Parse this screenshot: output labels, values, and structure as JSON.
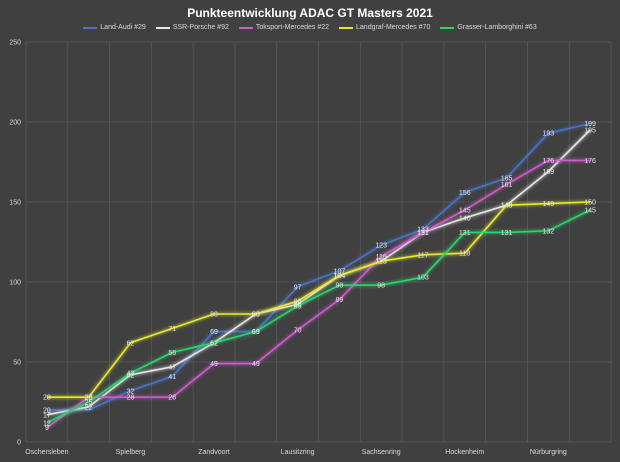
{
  "chart_data": {
    "type": "line",
    "title": "Punkteentwicklung ADAC GT Masters 2021",
    "xlabel": "",
    "ylabel": "",
    "ylim": [
      0,
      250
    ],
    "yticks": [
      0,
      50,
      100,
      150,
      200,
      250
    ],
    "grid": true,
    "legend_position": "top",
    "categories": [
      "Oschersleben",
      "",
      "Spielberg",
      "",
      "Zandvoort",
      "",
      "Lausitzring",
      "",
      "Sachsenring",
      "",
      "Hockenheim",
      "",
      "Nürburgring",
      ""
    ],
    "series": [
      {
        "name": "Land-Audi #29",
        "color": "#4a72c4",
        "values": [
          20,
          20,
          32,
          41,
          69,
          69,
          97,
          107,
          123,
          133,
          156,
          165,
          193,
          199
        ]
      },
      {
        "name": "SSR-Porsche #92",
        "color": "#e6e6e6",
        "values": [
          17,
          22,
          42,
          47,
          62,
          80,
          86,
          104,
          113,
          131,
          140,
          148,
          169,
          195
        ]
      },
      {
        "name": "Toksport-Mercedes #22",
        "color": "#d05ad0",
        "values": [
          9,
          28,
          28,
          28,
          49,
          49,
          70,
          89,
          116,
          131,
          145,
          161,
          176,
          176
        ]
      },
      {
        "name": "Landgraf-Mercedes #70",
        "color": "#e8e832",
        "values": [
          28,
          28,
          62,
          71,
          80,
          80,
          88,
          104,
          113,
          117,
          118,
          148,
          149,
          150
        ]
      },
      {
        "name": "Grasser-Lamborghini #63",
        "color": "#2bd46a",
        "values": [
          12,
          25,
          43,
          56,
          62,
          69,
          85,
          98,
          98,
          103,
          131,
          131,
          132,
          145
        ]
      }
    ],
    "data_labels": [
      {
        "series": 0,
        "points": [
          [
            0,
            "20"
          ],
          [
            2,
            "32"
          ],
          [
            3,
            "41"
          ],
          [
            4,
            "69"
          ],
          [
            5,
            "69"
          ],
          [
            6,
            "97"
          ],
          [
            7,
            "107"
          ],
          [
            8,
            "123"
          ],
          [
            9,
            "133"
          ],
          [
            10,
            "156"
          ],
          [
            11,
            "165"
          ],
          [
            12,
            "193"
          ],
          [
            13,
            "199"
          ]
        ]
      },
      {
        "series": 1,
        "points": [
          [
            0,
            "17"
          ],
          [
            1,
            "22"
          ],
          [
            2,
            "42"
          ],
          [
            3,
            "47"
          ],
          [
            4,
            "62"
          ],
          [
            5,
            "80"
          ],
          [
            6,
            "86"
          ],
          [
            7,
            "104"
          ],
          [
            8,
            "113"
          ],
          [
            9,
            "131"
          ],
          [
            10,
            "140"
          ],
          [
            11,
            "148"
          ],
          [
            12,
            "169"
          ],
          [
            13,
            "195"
          ]
        ]
      },
      {
        "series": 2,
        "points": [
          [
            0,
            "9"
          ],
          [
            1,
            "28"
          ],
          [
            2,
            "28"
          ],
          [
            3,
            "28"
          ],
          [
            4,
            "49"
          ],
          [
            5,
            "49"
          ],
          [
            6,
            "70"
          ],
          [
            7,
            "89"
          ],
          [
            8,
            "116"
          ],
          [
            9,
            "131"
          ],
          [
            10,
            "145"
          ],
          [
            11,
            "161"
          ],
          [
            12,
            "176"
          ],
          [
            13,
            "176"
          ]
        ]
      },
      {
        "series": 3,
        "points": [
          [
            0,
            "28"
          ],
          [
            1,
            "28"
          ],
          [
            2,
            "62"
          ],
          [
            3,
            "71"
          ],
          [
            4,
            "80"
          ],
          [
            5,
            "80"
          ],
          [
            6,
            "88"
          ],
          [
            7,
            "104"
          ],
          [
            8,
            "113"
          ],
          [
            9,
            "117"
          ],
          [
            10,
            "118"
          ],
          [
            11,
            "148"
          ],
          [
            12,
            "149"
          ],
          [
            13,
            "150"
          ]
        ]
      },
      {
        "series": 4,
        "points": [
          [
            0,
            "12"
          ],
          [
            1,
            "25"
          ],
          [
            2,
            "43"
          ],
          [
            3,
            "56"
          ],
          [
            4,
            "62"
          ],
          [
            5,
            "69"
          ],
          [
            6,
            "85"
          ],
          [
            7,
            "98"
          ],
          [
            8,
            "98"
          ],
          [
            9,
            "103"
          ],
          [
            10,
            "131"
          ],
          [
            11,
            "131"
          ],
          [
            12,
            "132"
          ],
          [
            13,
            "145"
          ]
        ]
      }
    ]
  }
}
